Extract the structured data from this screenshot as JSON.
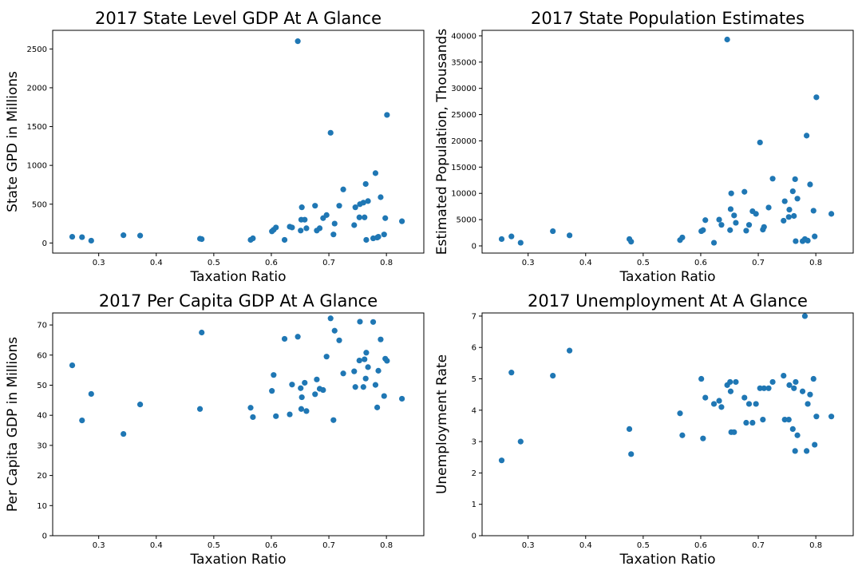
{
  "chart_data": [
    {
      "type": "scatter",
      "title": "2017 State Level GDP At A Glance",
      "xlabel": "Taxation Ratio",
      "ylabel": "State GPD in Millions",
      "xlim": [
        0.22,
        0.865
      ],
      "ylim": [
        -130,
        2740
      ],
      "xticks": [
        0.3,
        0.4,
        0.5,
        0.6,
        0.7,
        0.8
      ],
      "yticks": [
        0,
        500,
        1000,
        1500,
        2000,
        2500
      ],
      "color": "#1f77b4",
      "points": [
        [
          0.254,
          80
        ],
        [
          0.271,
          75
        ],
        [
          0.287,
          30
        ],
        [
          0.343,
          100
        ],
        [
          0.372,
          95
        ],
        [
          0.476,
          55
        ],
        [
          0.479,
          50
        ],
        [
          0.564,
          40
        ],
        [
          0.568,
          60
        ],
        [
          0.601,
          150
        ],
        [
          0.604,
          170
        ],
        [
          0.608,
          200
        ],
        [
          0.623,
          40
        ],
        [
          0.632,
          210
        ],
        [
          0.636,
          200
        ],
        [
          0.646,
          2600
        ],
        [
          0.651,
          160
        ],
        [
          0.652,
          300
        ],
        [
          0.653,
          460
        ],
        [
          0.658,
          300
        ],
        [
          0.661,
          190
        ],
        [
          0.676,
          480
        ],
        [
          0.679,
          160
        ],
        [
          0.684,
          190
        ],
        [
          0.69,
          320
        ],
        [
          0.696,
          360
        ],
        [
          0.703,
          1420
        ],
        [
          0.708,
          110
        ],
        [
          0.71,
          250
        ],
        [
          0.718,
          480
        ],
        [
          0.725,
          690
        ],
        [
          0.744,
          230
        ],
        [
          0.746,
          460
        ],
        [
          0.753,
          330
        ],
        [
          0.754,
          500
        ],
        [
          0.76,
          520
        ],
        [
          0.762,
          330
        ],
        [
          0.764,
          760
        ],
        [
          0.765,
          40
        ],
        [
          0.768,
          540
        ],
        [
          0.777,
          60
        ],
        [
          0.781,
          900
        ],
        [
          0.786,
          80
        ],
        [
          0.79,
          590
        ],
        [
          0.796,
          110
        ],
        [
          0.798,
          320
        ],
        [
          0.801,
          1650
        ],
        [
          0.827,
          280
        ],
        [
          0.784,
          70
        ]
      ]
    },
    {
      "type": "scatter",
      "title": "2017 State Population Estimates",
      "xlabel": "Taxation Ratio",
      "ylabel": "Estimated Population, Thousands",
      "xlim": [
        0.22,
        0.865
      ],
      "ylim": [
        -1370,
        41050
      ],
      "xticks": [
        0.3,
        0.4,
        0.5,
        0.6,
        0.7,
        0.8
      ],
      "yticks": [
        0,
        5000,
        10000,
        15000,
        20000,
        25000,
        30000,
        35000,
        40000
      ],
      "color": "#1f77b4",
      "points": [
        [
          0.254,
          1300
        ],
        [
          0.271,
          1800
        ],
        [
          0.287,
          600
        ],
        [
          0.343,
          2800
        ],
        [
          0.372,
          2000
        ],
        [
          0.476,
          1300
        ],
        [
          0.479,
          800
        ],
        [
          0.564,
          1100
        ],
        [
          0.568,
          1600
        ],
        [
          0.601,
          2800
        ],
        [
          0.604,
          3000
        ],
        [
          0.608,
          4900
        ],
        [
          0.623,
          600
        ],
        [
          0.632,
          5000
        ],
        [
          0.636,
          4000
        ],
        [
          0.646,
          39300
        ],
        [
          0.651,
          3000
        ],
        [
          0.652,
          7000
        ],
        [
          0.653,
          10000
        ],
        [
          0.658,
          5800
        ],
        [
          0.661,
          4400
        ],
        [
          0.676,
          10300
        ],
        [
          0.679,
          2900
        ],
        [
          0.684,
          4000
        ],
        [
          0.69,
          6600
        ],
        [
          0.696,
          6100
        ],
        [
          0.703,
          19700
        ],
        [
          0.708,
          3100
        ],
        [
          0.71,
          3600
        ],
        [
          0.718,
          7300
        ],
        [
          0.725,
          12800
        ],
        [
          0.744,
          4800
        ],
        [
          0.746,
          8500
        ],
        [
          0.753,
          5500
        ],
        [
          0.754,
          6900
        ],
        [
          0.76,
          10400
        ],
        [
          0.762,
          5700
        ],
        [
          0.764,
          12700
        ],
        [
          0.765,
          900
        ],
        [
          0.768,
          9000
        ],
        [
          0.777,
          900
        ],
        [
          0.781,
          1300
        ],
        [
          0.786,
          1000
        ],
        [
          0.79,
          11700
        ],
        [
          0.796,
          6700
        ],
        [
          0.798,
          1800
        ],
        [
          0.801,
          28300
        ],
        [
          0.827,
          6100
        ],
        [
          0.784,
          21000
        ]
      ]
    },
    {
      "type": "scatter",
      "title": "2017 Per Capita GDP At A Glance",
      "xlabel": "Taxation Ratio",
      "ylabel": "Per Capita GDP in Millions",
      "xlim": [
        0.22,
        0.865
      ],
      "ylim": [
        0,
        74
      ],
      "xticks": [
        0.3,
        0.4,
        0.5,
        0.6,
        0.7,
        0.8
      ],
      "yticks": [
        0,
        10,
        20,
        30,
        40,
        50,
        60,
        70
      ],
      "color": "#1f77b4",
      "points": [
        [
          0.254,
          56.6
        ],
        [
          0.271,
          38.3
        ],
        [
          0.287,
          47.1
        ],
        [
          0.343,
          33.8
        ],
        [
          0.372,
          43.6
        ],
        [
          0.476,
          42.1
        ],
        [
          0.479,
          67.5
        ],
        [
          0.564,
          42.5
        ],
        [
          0.568,
          39.4
        ],
        [
          0.601,
          48.1
        ],
        [
          0.604,
          53.4
        ],
        [
          0.608,
          39.7
        ],
        [
          0.623,
          65.4
        ],
        [
          0.632,
          40.3
        ],
        [
          0.636,
          50.2
        ],
        [
          0.646,
          66.1
        ],
        [
          0.651,
          49.0
        ],
        [
          0.652,
          42.1
        ],
        [
          0.653,
          46.0
        ],
        [
          0.658,
          50.8
        ],
        [
          0.661,
          41.4
        ],
        [
          0.676,
          47.0
        ],
        [
          0.679,
          51.9
        ],
        [
          0.684,
          48.8
        ],
        [
          0.69,
          48.4
        ],
        [
          0.696,
          59.5
        ],
        [
          0.703,
          72.2
        ],
        [
          0.708,
          38.4
        ],
        [
          0.71,
          68.1
        ],
        [
          0.718,
          64.9
        ],
        [
          0.725,
          53.9
        ],
        [
          0.744,
          54.6
        ],
        [
          0.746,
          49.4
        ],
        [
          0.753,
          58.2
        ],
        [
          0.754,
          71.1
        ],
        [
          0.76,
          49.4
        ],
        [
          0.762,
          58.6
        ],
        [
          0.764,
          52.2
        ],
        [
          0.765,
          60.8
        ],
        [
          0.768,
          56.0
        ],
        [
          0.777,
          71.0
        ],
        [
          0.781,
          50.1
        ],
        [
          0.786,
          54.8
        ],
        [
          0.79,
          65.2
        ],
        [
          0.796,
          46.4
        ],
        [
          0.798,
          58.8
        ],
        [
          0.801,
          58.1
        ],
        [
          0.827,
          45.5
        ],
        [
          0.784,
          42.6
        ]
      ]
    },
    {
      "type": "scatter",
      "title": "2017 Unemployment At A Glance",
      "xlabel": "Taxation Ratio",
      "ylabel": "Unemployment Rate",
      "xlim": [
        0.22,
        0.865
      ],
      "ylim": [
        0,
        7.1
      ],
      "xticks": [
        0.3,
        0.4,
        0.5,
        0.6,
        0.7,
        0.8
      ],
      "yticks": [
        0,
        1,
        2,
        3,
        4,
        5,
        6,
        7
      ],
      "color": "#1f77b4",
      "points": [
        [
          0.254,
          2.4
        ],
        [
          0.271,
          5.2
        ],
        [
          0.287,
          3.0
        ],
        [
          0.343,
          5.1
        ],
        [
          0.372,
          5.9
        ],
        [
          0.476,
          3.4
        ],
        [
          0.479,
          2.6
        ],
        [
          0.564,
          3.9
        ],
        [
          0.568,
          3.2
        ],
        [
          0.601,
          5.0
        ],
        [
          0.604,
          3.1
        ],
        [
          0.608,
          4.4
        ],
        [
          0.623,
          4.2
        ],
        [
          0.632,
          4.3
        ],
        [
          0.636,
          4.1
        ],
        [
          0.646,
          4.8
        ],
        [
          0.651,
          4.9
        ],
        [
          0.652,
          4.6
        ],
        [
          0.653,
          3.3
        ],
        [
          0.658,
          3.3
        ],
        [
          0.661,
          4.9
        ],
        [
          0.676,
          4.4
        ],
        [
          0.679,
          3.6
        ],
        [
          0.684,
          4.2
        ],
        [
          0.69,
          3.6
        ],
        [
          0.696,
          4.2
        ],
        [
          0.703,
          4.7
        ],
        [
          0.708,
          3.7
        ],
        [
          0.71,
          4.7
        ],
        [
          0.718,
          4.7
        ],
        [
          0.725,
          4.9
        ],
        [
          0.744,
          5.1
        ],
        [
          0.746,
          3.7
        ],
        [
          0.753,
          3.7
        ],
        [
          0.754,
          4.8
        ],
        [
          0.76,
          3.4
        ],
        [
          0.762,
          4.7
        ],
        [
          0.764,
          2.7
        ],
        [
          0.765,
          4.9
        ],
        [
          0.768,
          3.2
        ],
        [
          0.777,
          4.6
        ],
        [
          0.781,
          7.0
        ],
        [
          0.786,
          4.2
        ],
        [
          0.79,
          4.5
        ],
        [
          0.796,
          5.0
        ],
        [
          0.798,
          2.9
        ],
        [
          0.801,
          3.8
        ],
        [
          0.827,
          3.8
        ],
        [
          0.784,
          2.7
        ]
      ]
    }
  ]
}
